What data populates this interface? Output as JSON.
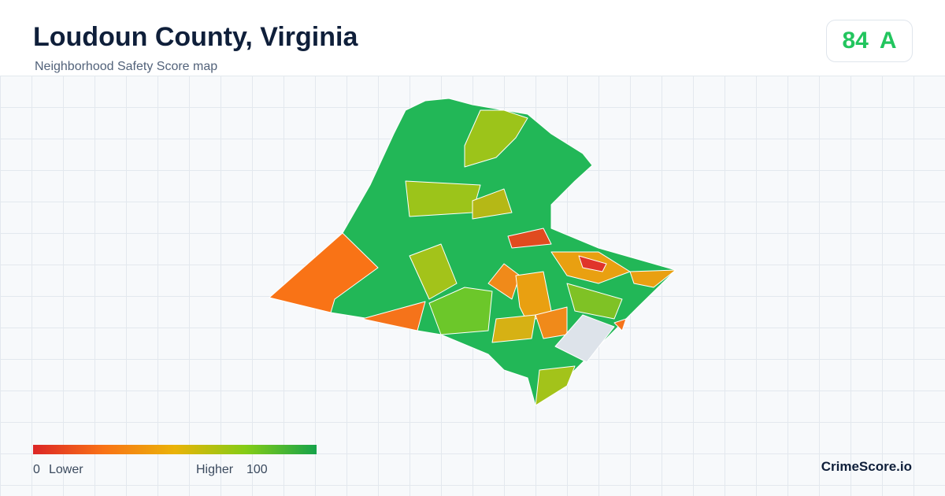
{
  "header": {
    "title": "Loudoun County, Virginia",
    "subtitle": "Neighborhood Safety Score map"
  },
  "score": {
    "value": 84,
    "grade": "A"
  },
  "legend": {
    "min": 0,
    "min_label": "Lower",
    "max_label": "Higher",
    "max": 100
  },
  "brand": "CrimeScore.io"
}
